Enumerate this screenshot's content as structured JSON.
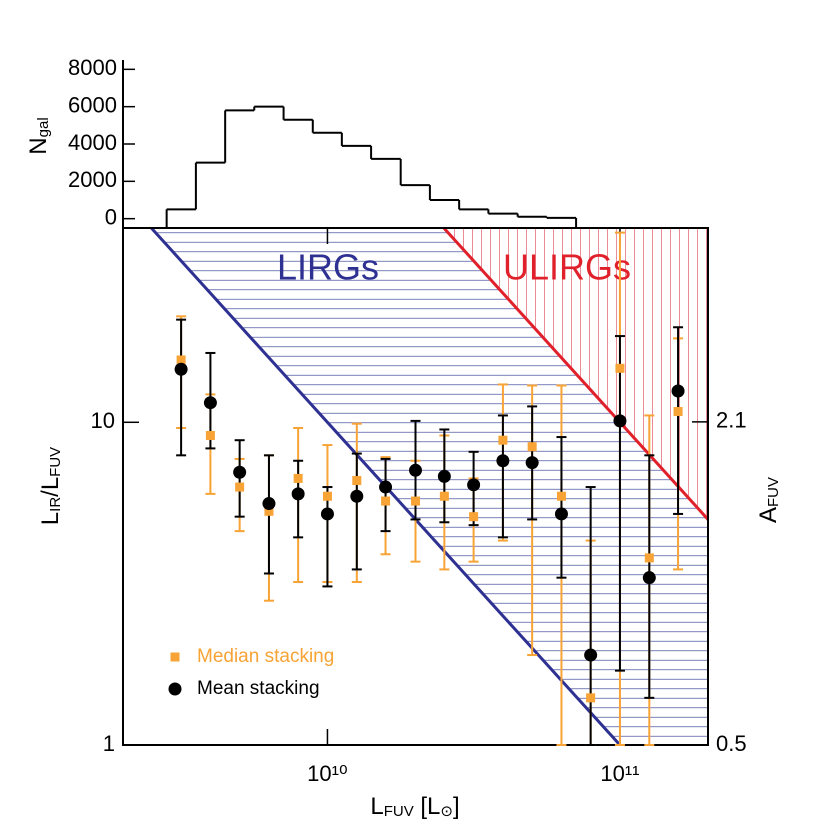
{
  "chart_data": [
    {
      "type": "histogram",
      "ylabel": [
        "N",
        "gal"
      ],
      "bins": [
        2820000000.0,
        3550000000.0,
        4470000000.0,
        5620000000.0,
        7080000000.0,
        8910000000.0,
        11200000000.0,
        14100000000.0,
        17800000000.0,
        22400000000.0,
        28200000000.0,
        35500000000.0,
        44700000000.0,
        56200000000.0,
        70800000000.0
      ],
      "counts": [
        500,
        3000,
        5800,
        6000,
        5300,
        4600,
        3900,
        3200,
        1800,
        1000,
        500,
        270,
        100,
        40
      ],
      "color": "#000000",
      "xlim": [
        2000000000.0,
        200000000000.0
      ],
      "xscale": "log",
      "ylim": [
        -500,
        8500
      ],
      "yticks": [
        0,
        2000,
        4000,
        6000,
        8000
      ]
    },
    {
      "type": "scatter",
      "xlabel": [
        "L",
        "FUV",
        " [L",
        "⊙",
        "]"
      ],
      "ylabel": [
        "L",
        "IR",
        "/L",
        "FUV"
      ],
      "y2label": [
        "A",
        "FUV"
      ],
      "xlim": [
        2000000000.0,
        200000000000.0
      ],
      "xscale": "log",
      "xticks": [
        {
          "value": 10000000000.0,
          "label": "10¹⁰"
        },
        {
          "value": 100000000000.0,
          "label": "10¹¹"
        }
      ],
      "ylim": [
        1,
        40
      ],
      "yscale": "log",
      "yticks": [
        1,
        10
      ],
      "y2lim": [
        0.5,
        3.06
      ],
      "y2ticks": [
        0.5,
        2.1
      ],
      "legend": "lower left",
      "x": [
        3160000000.0,
        3980000000.0,
        5010000000.0,
        6310000000.0,
        7940000000.0,
        10000000000.0,
        12600000000.0,
        15800000000.0,
        20000000000.0,
        25100000000.0,
        31600000000.0,
        39800000000.0,
        50100000000.0,
        63100000000.0,
        79400000000.0,
        100000000000.0,
        126000000000.0,
        158000000000.0
      ],
      "series": [
        {
          "name": "Median stacking",
          "color": "#f7a335",
          "marker": "square",
          "values": [
            15.6,
            9.1,
            6.3,
            5.3,
            6.7,
            5.9,
            6.6,
            5.7,
            5.7,
            5.9,
            5.1,
            8.8,
            8.4,
            5.9,
            1.4,
            14.7,
            3.8,
            10.8
          ],
          "low": [
            9.6,
            6.0,
            4.6,
            2.8,
            3.2,
            3.2,
            3.2,
            3.9,
            3.7,
            3.5,
            3.7,
            4.3,
            1.9,
            1.0,
            1.0,
            1.0,
            1.0,
            3.5
          ],
          "high": [
            21.3,
            12.2,
            7.7,
            7.9,
            9.6,
            8.5,
            9.9,
            7.8,
            7.6,
            9.1,
            6.7,
            13.1,
            13.0,
            13.0,
            4.3,
            38.7,
            10.5,
            18.2
          ]
        },
        {
          "name": "Mean stacking",
          "color": "#000000",
          "marker": "circle",
          "values": [
            14.6,
            11.5,
            7.0,
            5.6,
            6.0,
            5.2,
            5.9,
            6.3,
            7.1,
            6.8,
            6.4,
            7.6,
            7.5,
            5.2,
            1.9,
            10.1,
            3.3,
            12.5
          ],
          "low": [
            7.9,
            8.3,
            5.1,
            3.4,
            4.4,
            3.1,
            3.5,
            4.6,
            5.0,
            4.9,
            4.8,
            4.4,
            5.0,
            3.3,
            1.0,
            1.7,
            1.4,
            5.2
          ],
          "high": [
            20.8,
            16.4,
            8.8,
            7.9,
            7.6,
            6.3,
            8.0,
            7.7,
            10.1,
            9.5,
            8.1,
            10.5,
            11.2,
            9.0,
            6.3,
            18.5,
            7.9,
            19.7
          ]
        }
      ],
      "lines": [
        {
          "name": "LIRGs",
          "color": "#2e3192",
          "x": [
            2500000000.0,
            100000000000.0
          ],
          "y": [
            40,
            1
          ]
        },
        {
          "name": "ULIRGs",
          "color": "#e0202a",
          "x": [
            25000000000.0,
            200000000000.0
          ],
          "y": [
            40,
            5
          ]
        }
      ]
    }
  ]
}
